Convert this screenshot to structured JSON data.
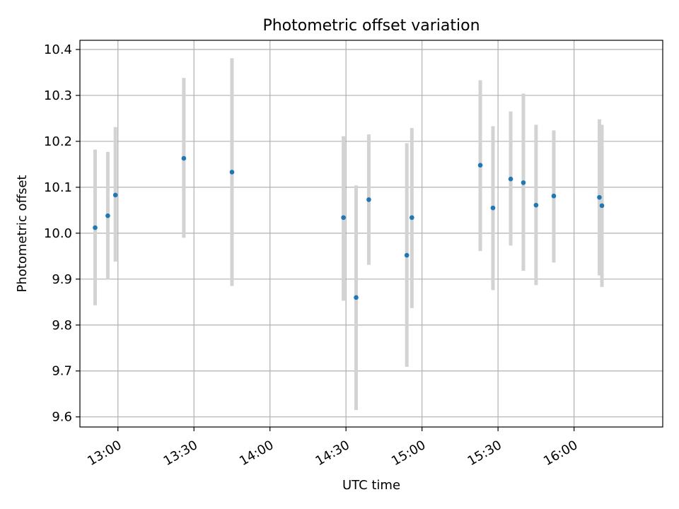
{
  "chart_data": {
    "type": "scatter",
    "title": "Photometric offset variation",
    "xlabel": "UTC time",
    "ylabel": "Photometric offset",
    "x_axis_type": "time",
    "xlim": [
      "12:45",
      "16:35"
    ],
    "ylim": [
      9.578,
      10.42
    ],
    "grid": true,
    "x_ticks": [
      "13:00",
      "13:30",
      "14:00",
      "14:30",
      "15:00",
      "15:30",
      "16:00"
    ],
    "y_ticks": [
      "9.6",
      "9.7",
      "9.8",
      "9.9",
      "10.0",
      "10.1",
      "10.2",
      "10.3",
      "10.4"
    ],
    "point_color": "#1f77b4",
    "errorbar_color": "#d3d3d3",
    "series": [
      {
        "points": [
          {
            "time": "12:51",
            "y": 10.012,
            "ylow": 9.843,
            "yhigh": 10.182
          },
          {
            "time": "12:56",
            "y": 10.038,
            "ylow": 9.9,
            "yhigh": 10.177
          },
          {
            "time": "12:59",
            "y": 10.083,
            "ylow": 9.938,
            "yhigh": 10.231
          },
          {
            "time": "13:26",
            "y": 10.163,
            "ylow": 9.99,
            "yhigh": 10.338
          },
          {
            "time": "13:45",
            "y": 10.133,
            "ylow": 9.885,
            "yhigh": 10.381
          },
          {
            "time": "14:29",
            "y": 10.034,
            "ylow": 9.853,
            "yhigh": 10.211
          },
          {
            "time": "14:34",
            "y": 9.86,
            "ylow": 9.615,
            "yhigh": 10.104
          },
          {
            "time": "14:39",
            "y": 10.073,
            "ylow": 9.931,
            "yhigh": 10.215
          },
          {
            "time": "14:54",
            "y": 9.952,
            "ylow": 9.709,
            "yhigh": 10.196
          },
          {
            "time": "14:56",
            "y": 10.034,
            "ylow": 9.837,
            "yhigh": 10.229
          },
          {
            "time": "15:23",
            "y": 10.148,
            "ylow": 9.961,
            "yhigh": 10.333
          },
          {
            "time": "15:28",
            "y": 10.055,
            "ylow": 9.876,
            "yhigh": 10.233
          },
          {
            "time": "15:35",
            "y": 10.118,
            "ylow": 9.973,
            "yhigh": 10.265
          },
          {
            "time": "15:40",
            "y": 10.11,
            "ylow": 9.918,
            "yhigh": 10.304
          },
          {
            "time": "15:45",
            "y": 10.061,
            "ylow": 9.887,
            "yhigh": 10.236
          },
          {
            "time": "15:52",
            "y": 10.081,
            "ylow": 9.936,
            "yhigh": 10.224
          },
          {
            "time": "16:10",
            "y": 10.078,
            "ylow": 9.908,
            "yhigh": 10.248
          },
          {
            "time": "16:11",
            "y": 10.06,
            "ylow": 9.883,
            "yhigh": 10.236
          }
        ]
      }
    ]
  }
}
